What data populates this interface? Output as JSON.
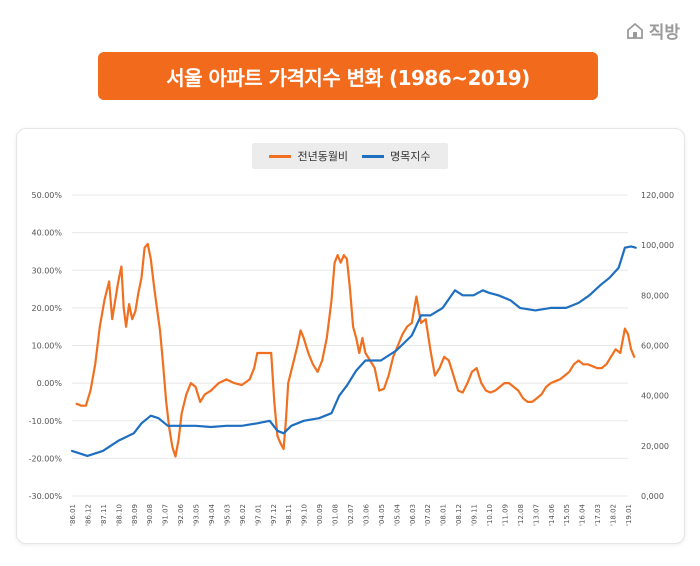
{
  "brand": {
    "name": "직방",
    "icon": "home-icon"
  },
  "title": "서울 아파트 가격지수 변화 (1986~2019)",
  "colors": {
    "accent": "#f26b1d",
    "orange_series": "#f07020",
    "blue_series": "#1f6fc0",
    "grid": "#e8e8e8"
  },
  "chart_data": {
    "type": "line",
    "title": "서울 아파트 가격지수 변화 (1986~2019)",
    "left_axis": {
      "min": -30,
      "max": 50,
      "step": 10,
      "format": "percent",
      "tick_labels": [
        "-30.00%",
        "-20.00%",
        "-10.00%",
        "0.00%",
        "10.00%",
        "20.00%",
        "30.00%",
        "40.00%",
        "50.00%"
      ]
    },
    "right_axis": {
      "min": 0,
      "max": 120000,
      "step": 20000,
      "tick_labels": [
        "0,000",
        "20,000",
        "40,000",
        "60,000",
        "80,000",
        "100,000",
        "120,000"
      ]
    },
    "x_tick_labels": [
      "'86.01",
      "'86.12",
      "'87.11",
      "'88.10",
      "'89.09",
      "'90.08",
      "'91.07",
      "'92.06",
      "'93.05",
      "'94.04",
      "'95.03",
      "'96.02",
      "'97.01",
      "'97.12",
      "'98.11",
      "'99.10",
      "'00.09",
      "'01.08",
      "'02.07",
      "'03.06",
      "'04.05",
      "'05.04",
      "'06.03",
      "'07.02",
      "'08.01",
      "'08.12",
      "'09.11",
      "'10.10",
      "'11.09",
      "'12.08",
      "'13.07",
      "'14.06",
      "'15.05",
      "'16.04",
      "'17.03",
      "'18.02",
      "'19.01"
    ],
    "series": [
      {
        "name": "전년동월비",
        "axis": "left",
        "color": "#f07020",
        "points": [
          [
            0.3,
            -5.5
          ],
          [
            0.6,
            -6
          ],
          [
            0.9,
            -6
          ],
          [
            1.2,
            -2
          ],
          [
            1.5,
            5
          ],
          [
            1.8,
            15
          ],
          [
            2.1,
            22
          ],
          [
            2.4,
            27
          ],
          [
            2.6,
            17
          ],
          [
            2.8,
            22
          ],
          [
            3.0,
            27
          ],
          [
            3.2,
            31
          ],
          [
            3.35,
            20
          ],
          [
            3.5,
            15
          ],
          [
            3.7,
            21
          ],
          [
            3.9,
            17
          ],
          [
            4.1,
            19
          ],
          [
            4.3,
            24
          ],
          [
            4.5,
            28
          ],
          [
            4.7,
            36
          ],
          [
            4.9,
            37
          ],
          [
            5.1,
            33
          ],
          [
            5.3,
            26
          ],
          [
            5.5,
            20
          ],
          [
            5.7,
            14
          ],
          [
            5.9,
            5
          ],
          [
            6.1,
            -5
          ],
          [
            6.3,
            -12
          ],
          [
            6.5,
            -17
          ],
          [
            6.7,
            -19.5
          ],
          [
            6.9,
            -15
          ],
          [
            7.1,
            -8
          ],
          [
            7.4,
            -3
          ],
          [
            7.7,
            0
          ],
          [
            8.0,
            -1
          ],
          [
            8.3,
            -5
          ],
          [
            8.6,
            -3
          ],
          [
            9.0,
            -2
          ],
          [
            9.5,
            0
          ],
          [
            10.0,
            1
          ],
          [
            10.5,
            0
          ],
          [
            11.0,
            -0.5
          ],
          [
            11.5,
            1
          ],
          [
            11.8,
            4
          ],
          [
            12.0,
            8
          ],
          [
            12.5,
            8
          ],
          [
            12.9,
            8
          ],
          [
            13.1,
            -5
          ],
          [
            13.3,
            -14
          ],
          [
            13.5,
            -16
          ],
          [
            13.7,
            -17.5
          ],
          [
            13.85,
            -10
          ],
          [
            14.0,
            0
          ],
          [
            14.3,
            5
          ],
          [
            14.6,
            10
          ],
          [
            14.8,
            14
          ],
          [
            15.0,
            12
          ],
          [
            15.3,
            8
          ],
          [
            15.6,
            5
          ],
          [
            15.9,
            3
          ],
          [
            16.2,
            6
          ],
          [
            16.5,
            12
          ],
          [
            16.8,
            22
          ],
          [
            17.0,
            32
          ],
          [
            17.2,
            34
          ],
          [
            17.4,
            32
          ],
          [
            17.6,
            34
          ],
          [
            17.8,
            33
          ],
          [
            18.0,
            25
          ],
          [
            18.2,
            15
          ],
          [
            18.4,
            12
          ],
          [
            18.6,
            8
          ],
          [
            18.8,
            12
          ],
          [
            19.0,
            8
          ],
          [
            19.3,
            6
          ],
          [
            19.6,
            4
          ],
          [
            19.9,
            -2
          ],
          [
            20.2,
            -1.5
          ],
          [
            20.5,
            2
          ],
          [
            20.8,
            7
          ],
          [
            21.1,
            10
          ],
          [
            21.4,
            13
          ],
          [
            21.7,
            15
          ],
          [
            22.0,
            16
          ],
          [
            22.3,
            23
          ],
          [
            22.6,
            16
          ],
          [
            22.9,
            17
          ],
          [
            23.2,
            9
          ],
          [
            23.5,
            2
          ],
          [
            23.8,
            4
          ],
          [
            24.1,
            7
          ],
          [
            24.4,
            6
          ],
          [
            24.7,
            2
          ],
          [
            25.0,
            -2
          ],
          [
            25.3,
            -2.5
          ],
          [
            25.6,
            0
          ],
          [
            25.9,
            3
          ],
          [
            26.2,
            4
          ],
          [
            26.5,
            0
          ],
          [
            26.8,
            -2
          ],
          [
            27.1,
            -2.5
          ],
          [
            27.4,
            -2
          ],
          [
            27.7,
            -1
          ],
          [
            28.0,
            0
          ],
          [
            28.3,
            0
          ],
          [
            28.6,
            -1
          ],
          [
            28.9,
            -2
          ],
          [
            29.2,
            -4
          ],
          [
            29.5,
            -5
          ],
          [
            29.8,
            -5
          ],
          [
            30.1,
            -4
          ],
          [
            30.4,
            -3
          ],
          [
            30.7,
            -1
          ],
          [
            31.0,
            0
          ],
          [
            31.3,
            0.5
          ],
          [
            31.6,
            1
          ],
          [
            31.9,
            2
          ],
          [
            32.2,
            3
          ],
          [
            32.5,
            5
          ],
          [
            32.8,
            6
          ],
          [
            33.1,
            5
          ],
          [
            33.4,
            5
          ],
          [
            33.7,
            4.5
          ],
          [
            34.0,
            4
          ],
          [
            34.3,
            4
          ],
          [
            34.6,
            5
          ],
          [
            34.9,
            7
          ],
          [
            35.2,
            9
          ],
          [
            35.5,
            8
          ],
          [
            35.8,
            14.5
          ],
          [
            36.0,
            13
          ],
          [
            36.2,
            9
          ],
          [
            36.4,
            7
          ]
        ]
      },
      {
        "name": "명목지수",
        "axis": "right",
        "color": "#1f6fc0",
        "points": [
          [
            0,
            18000
          ],
          [
            1,
            16000
          ],
          [
            2,
            18000
          ],
          [
            3,
            22000
          ],
          [
            4,
            25000
          ],
          [
            4.5,
            29000
          ],
          [
            5.1,
            32000
          ],
          [
            5.6,
            31000
          ],
          [
            6.2,
            28000
          ],
          [
            7.0,
            28000
          ],
          [
            8.0,
            28000
          ],
          [
            9.0,
            27500
          ],
          [
            10.0,
            28000
          ],
          [
            11.0,
            28000
          ],
          [
            12.0,
            29000
          ],
          [
            12.8,
            30000
          ],
          [
            13.3,
            26000
          ],
          [
            13.7,
            25000
          ],
          [
            14.2,
            28000
          ],
          [
            15.0,
            30000
          ],
          [
            16.0,
            31000
          ],
          [
            16.8,
            33000
          ],
          [
            17.3,
            40000
          ],
          [
            17.8,
            44000
          ],
          [
            18.4,
            50000
          ],
          [
            19.0,
            54000
          ],
          [
            20.0,
            54000
          ],
          [
            21.0,
            58000
          ],
          [
            22.0,
            64000
          ],
          [
            22.6,
            72000
          ],
          [
            23.2,
            72000
          ],
          [
            24.0,
            75000
          ],
          [
            24.8,
            82000
          ],
          [
            25.3,
            80000
          ],
          [
            26.0,
            80000
          ],
          [
            26.6,
            82000
          ],
          [
            27.0,
            81000
          ],
          [
            27.6,
            80000
          ],
          [
            28.4,
            78000
          ],
          [
            29.0,
            75000
          ],
          [
            30.0,
            74000
          ],
          [
            31.0,
            75000
          ],
          [
            32.0,
            75000
          ],
          [
            32.8,
            77000
          ],
          [
            33.5,
            80000
          ],
          [
            34.2,
            84000
          ],
          [
            34.8,
            87000
          ],
          [
            35.4,
            91000
          ],
          [
            35.8,
            99000
          ],
          [
            36.2,
            99500
          ],
          [
            36.5,
            99000
          ]
        ]
      }
    ]
  }
}
